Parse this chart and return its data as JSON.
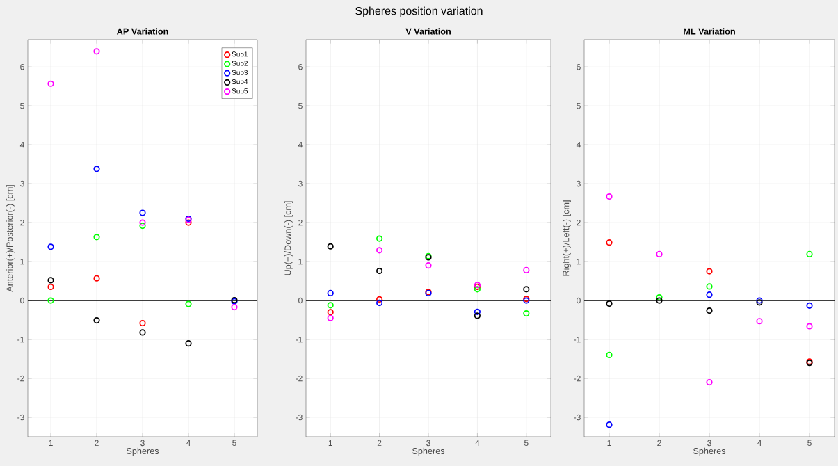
{
  "chart_data": [
    {
      "type": "scatter",
      "title": "AP Variation",
      "annotations": [
        "Spheres position variation"
      ],
      "xlabel": "Spheres",
      "ylabel": "Anterior(+)/Posterior(-) [cm]",
      "x": [
        1,
        2,
        3,
        4,
        5
      ],
      "xlim": [
        0.5,
        5.5
      ],
      "ylim": [
        -3.5,
        6.7
      ],
      "xticks": [
        1,
        2,
        3,
        4,
        5
      ],
      "yticks": [
        -3,
        -2,
        -1,
        0,
        1,
        2,
        3,
        4,
        5,
        6
      ],
      "grid": true,
      "marker": "circle",
      "legend": "top right",
      "ref_lines": [
        {
          "axis": "y",
          "value": 0,
          "color": "#000000"
        }
      ],
      "series": [
        {
          "name": "Sub1",
          "color": "#ff0000",
          "values": [
            0.35,
            0.57,
            -0.58,
            2.0,
            null
          ]
        },
        {
          "name": "Sub2",
          "color": "#00ff00",
          "values": [
            0.0,
            1.63,
            1.92,
            -0.09,
            null
          ]
        },
        {
          "name": "Sub3",
          "color": "#0000ff",
          "values": [
            1.38,
            3.38,
            2.25,
            2.1,
            -0.02
          ]
        },
        {
          "name": "Sub4",
          "color": "#000000",
          "values": [
            0.52,
            -0.51,
            -0.82,
            -1.1,
            0.01
          ]
        },
        {
          "name": "Sub5",
          "color": "#ff00ff",
          "values": [
            5.57,
            6.4,
            2.0,
            2.07,
            -0.17
          ]
        }
      ]
    },
    {
      "type": "scatter",
      "title": "V Variation",
      "xlabel": "Spheres",
      "ylabel": "Up(+)/Down(-) [cm]",
      "x": [
        1,
        2,
        3,
        4,
        5
      ],
      "xlim": [
        0.5,
        5.5
      ],
      "ylim": [
        -3.5,
        6.7
      ],
      "xticks": [
        1,
        2,
        3,
        4,
        5
      ],
      "yticks": [
        -3,
        -2,
        -1,
        0,
        1,
        2,
        3,
        4,
        5,
        6
      ],
      "grid": true,
      "marker": "circle",
      "ref_lines": [
        {
          "axis": "y",
          "value": 0,
          "color": "#000000"
        }
      ],
      "series": [
        {
          "color": "#ff0000",
          "values": [
            -0.3,
            0.03,
            0.22,
            0.35,
            0.04
          ]
        },
        {
          "color": "#00ff00",
          "values": [
            -0.12,
            1.59,
            1.14,
            0.29,
            -0.33
          ]
        },
        {
          "color": "#0000ff",
          "values": [
            0.19,
            -0.06,
            0.19,
            -0.29,
            0.0
          ]
        },
        {
          "color": "#000000",
          "values": [
            1.39,
            0.76,
            1.11,
            -0.39,
            0.29
          ]
        },
        {
          "color": "#ff00ff",
          "values": [
            -0.45,
            1.29,
            0.9,
            0.4,
            0.78
          ]
        }
      ]
    },
    {
      "type": "scatter",
      "title": "ML Variation",
      "xlabel": "Spheres",
      "ylabel": "Right(+)/Left(-) [cm]",
      "x": [
        1,
        2,
        3,
        4,
        5
      ],
      "xlim": [
        0.5,
        5.5
      ],
      "ylim": [
        -3.5,
        6.7
      ],
      "xticks": [
        1,
        2,
        3,
        4,
        5
      ],
      "yticks": [
        -3,
        -2,
        -1,
        0,
        1,
        2,
        3,
        4,
        5,
        6
      ],
      "grid": true,
      "marker": "circle",
      "ref_lines": [
        {
          "axis": "y",
          "value": 0,
          "color": "#000000"
        }
      ],
      "series": [
        {
          "color": "#ff0000",
          "values": [
            1.49,
            null,
            0.75,
            null,
            -1.57
          ]
        },
        {
          "color": "#00ff00",
          "values": [
            -1.4,
            0.08,
            0.36,
            null,
            1.19
          ]
        },
        {
          "color": "#0000ff",
          "values": [
            -3.19,
            null,
            0.15,
            0.0,
            -0.13
          ]
        },
        {
          "color": "#000000",
          "values": [
            -0.08,
            0.0,
            -0.26,
            -0.05,
            -1.6
          ]
        },
        {
          "color": "#ff00ff",
          "values": [
            2.67,
            1.19,
            -2.1,
            -0.53,
            -0.66
          ]
        }
      ]
    }
  ]
}
